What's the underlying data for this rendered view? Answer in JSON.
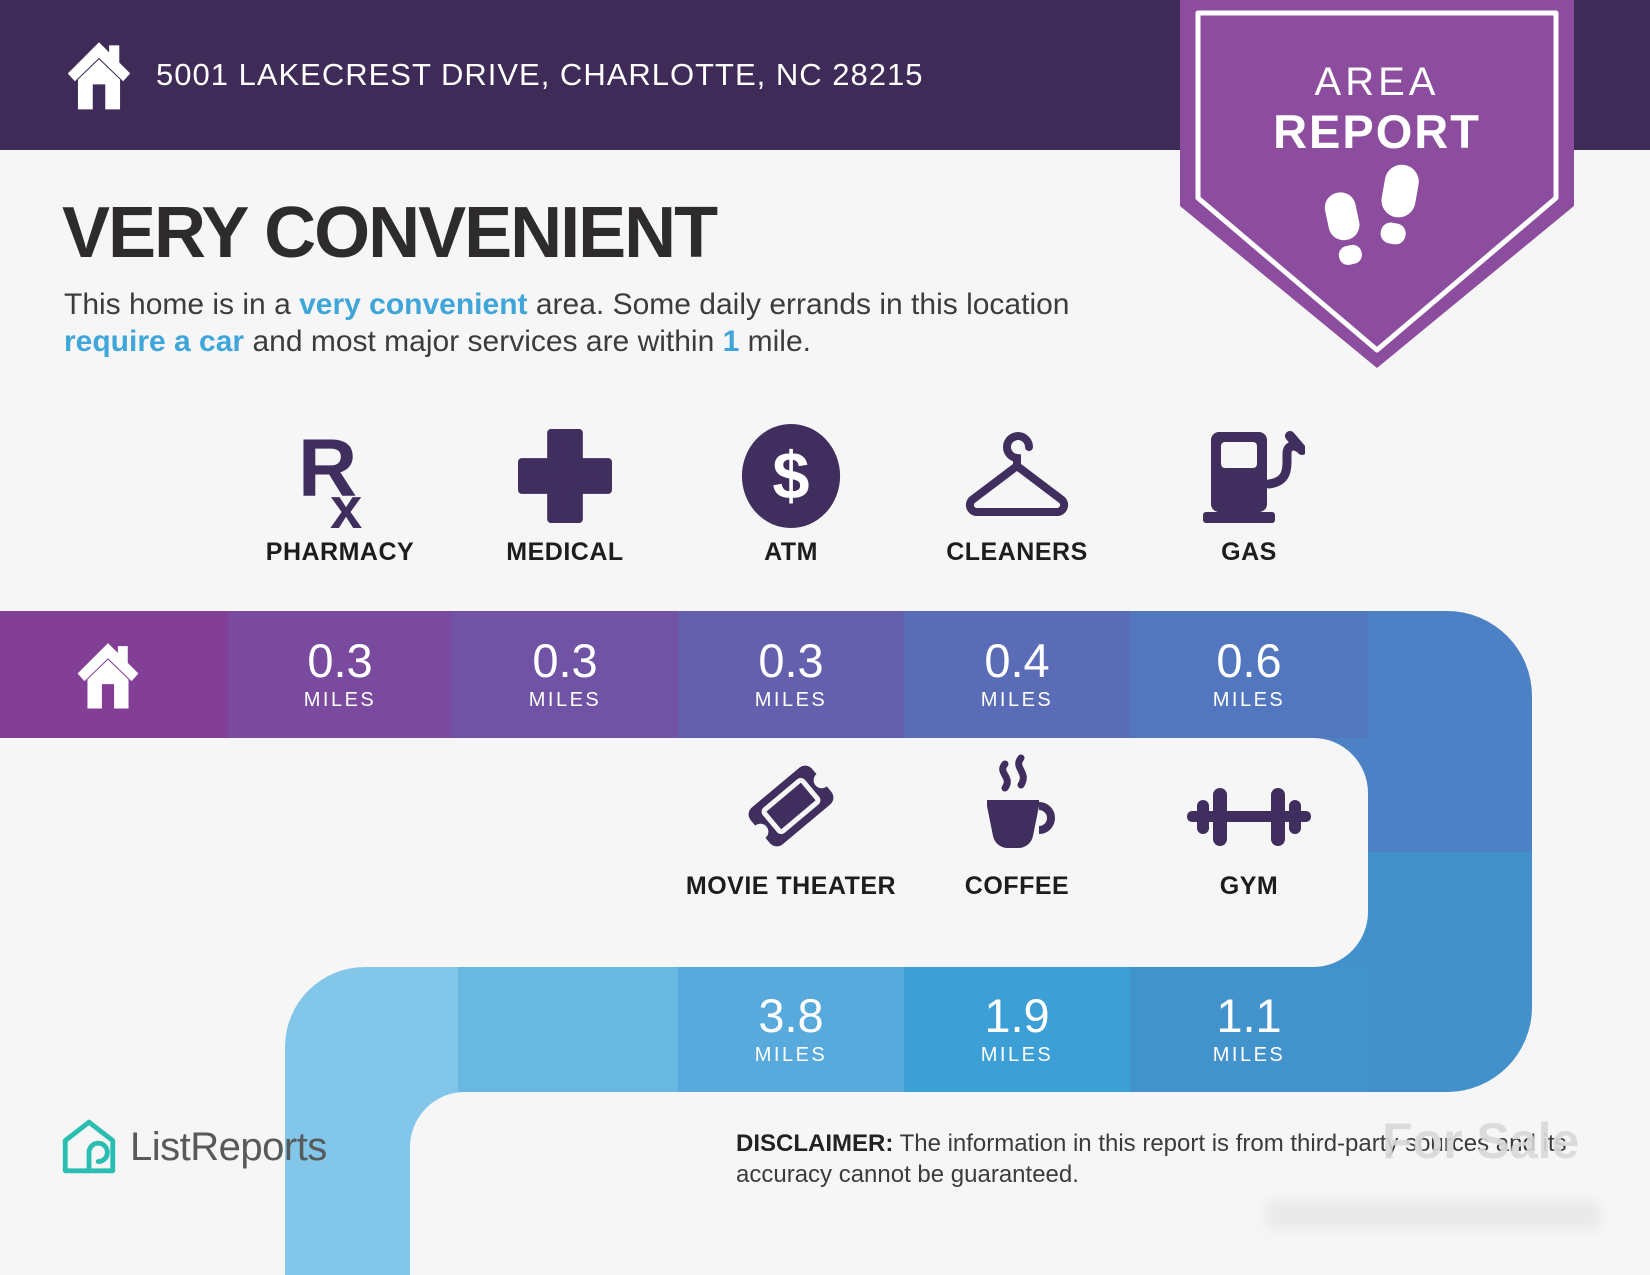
{
  "header": {
    "address": "5001 LAKECREST DRIVE, CHARLOTTE, NC 28215"
  },
  "badge": {
    "line1": "AREA",
    "line2": "REPORT",
    "icon": "footprints-icon"
  },
  "headline": {
    "title": "VERY CONVENIENT",
    "paragraph": [
      {
        "text": "This home is in a ",
        "bold": false
      },
      {
        "text": "very convenient",
        "bold": true
      },
      {
        "text": " area. Some daily errands in this location ",
        "bold": false
      },
      {
        "text": "require a car",
        "bold": true
      },
      {
        "text": " and most major services are within ",
        "bold": false
      },
      {
        "text": "1",
        "bold": true
      },
      {
        "text": " mile.",
        "bold": false
      }
    ]
  },
  "services": [
    {
      "label": "PHARMACY",
      "distance": "0.3",
      "unit": "MILES",
      "icon": "pharmacy-rx-icon"
    },
    {
      "label": "MEDICAL",
      "distance": "0.3",
      "unit": "MILES",
      "icon": "medical-cross-icon"
    },
    {
      "label": "ATM",
      "distance": "0.3",
      "unit": "MILES",
      "icon": "atm-dollar-icon"
    },
    {
      "label": "CLEANERS",
      "distance": "0.4",
      "unit": "MILES",
      "icon": "hanger-icon"
    },
    {
      "label": "GAS",
      "distance": "0.6",
      "unit": "MILES",
      "icon": "gas-pump-icon"
    }
  ],
  "entertainment": [
    {
      "label": "MOVIE THEATER",
      "distance": "3.8",
      "unit": "MILES",
      "icon": "ticket-icon"
    },
    {
      "label": "COFFEE",
      "distance": "1.9",
      "unit": "MILES",
      "icon": "coffee-cup-icon"
    },
    {
      "label": "GYM",
      "distance": "1.1",
      "unit": "MILES",
      "icon": "dumbbell-icon"
    }
  ],
  "glyphs": {
    "atm_symbol": "$",
    "pharmacy_main": "R",
    "pharmacy_sub": "x"
  },
  "footer": {
    "logo_text": "ListReports",
    "disclaimer_label": "DISCLAIMER:",
    "disclaimer_text": " The information in this report is from third-party sources and its accuracy cannot be guaranteed.",
    "watermark": "For Sale"
  },
  "colors": {
    "header_bg": "#3e2b57",
    "badge_purple": "#8d4d9e",
    "accent_blue": "#3fa6da",
    "icon_purple": "#3f2e5e",
    "logo_teal": "#2abdb1",
    "bar_row1": [
      "#833f96",
      "#7a4a9f",
      "#7053a4",
      "#6560ad",
      "#5a6cb5",
      "#5377bf"
    ],
    "bar_turn_top": "#4d81c5",
    "bar_turn_bottom": "#4291cb",
    "bar_row2": [
      "#82c7e9",
      "#68b8e1",
      "#57aadb",
      "#3ca0d6",
      "#4292cc"
    ]
  }
}
